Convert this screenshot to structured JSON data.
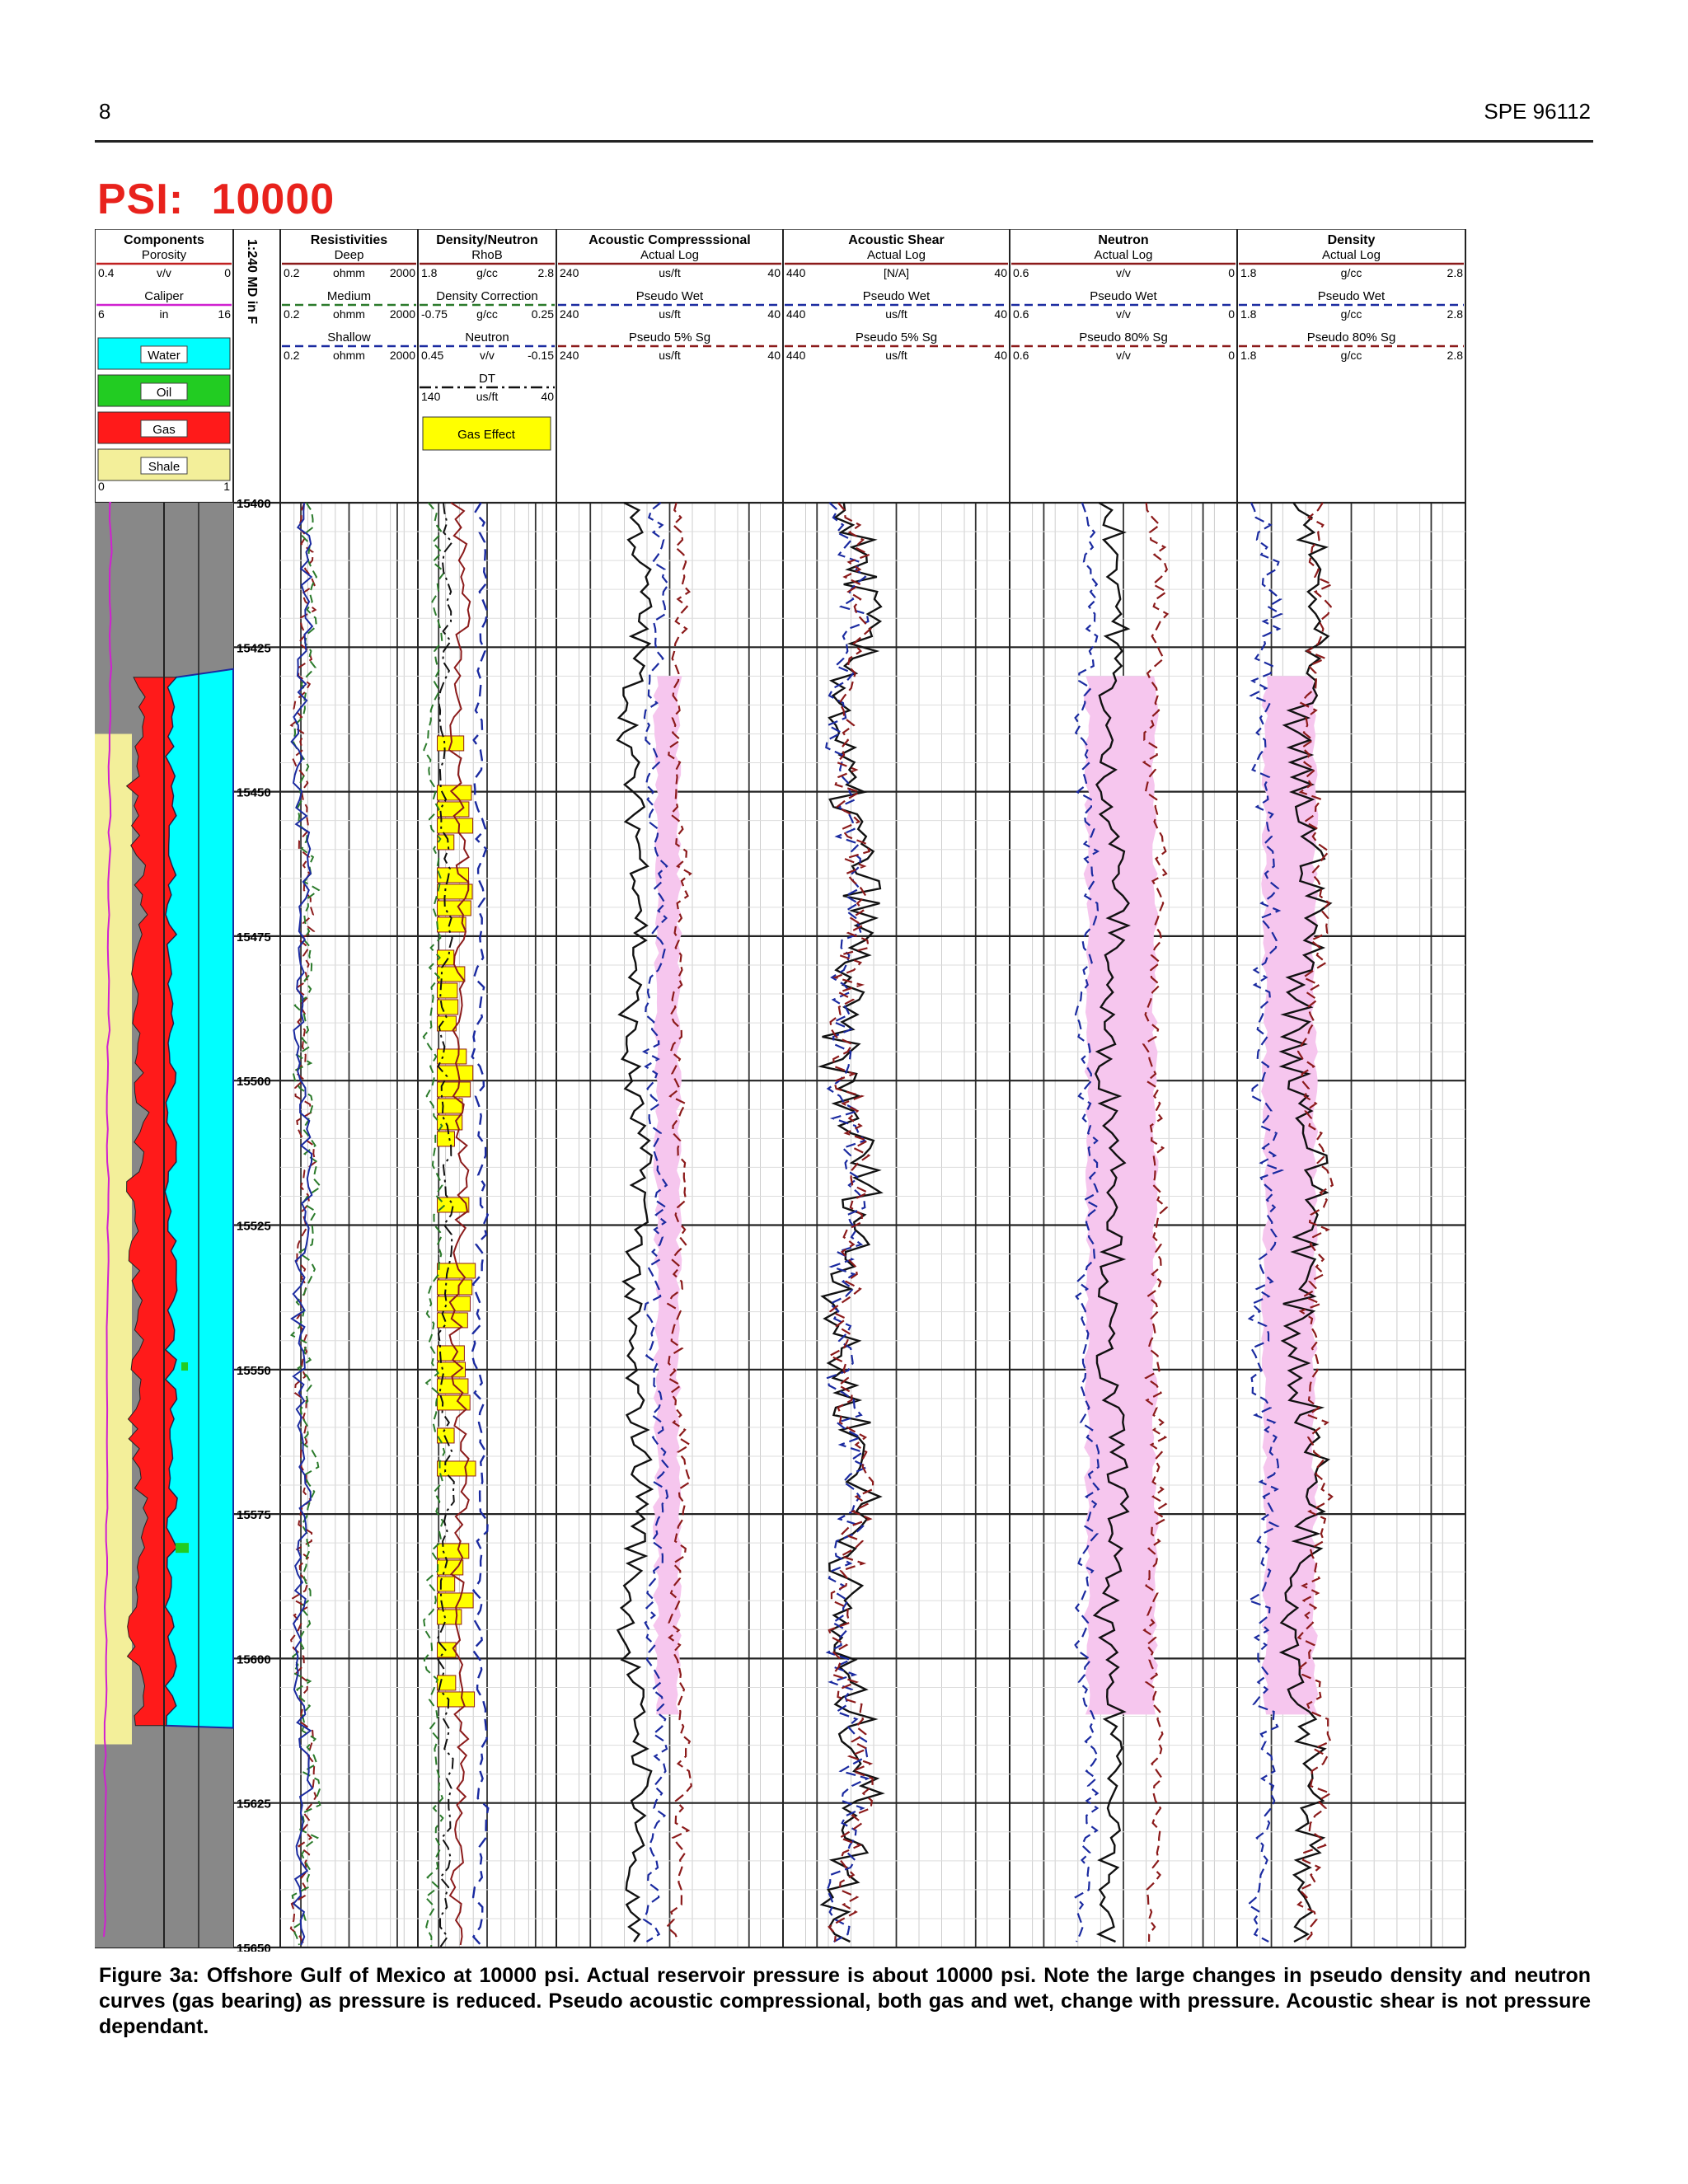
{
  "header": {
    "page_number": "8",
    "paper_id": "SPE 96112"
  },
  "figure": {
    "psi_label": "PSI:",
    "psi_value": "10000",
    "caption": "Figure 3a: Offshore Gulf of Mexico at 10000 psi.  Actual reservoir pressure is about 10000 psi.  Note the large changes in pseudo density and neutron curves (gas bearing) as pressure is reduced.  Pseudo acoustic compressional, both gas and wet, change with pressure.  Acoustic shear is not pressure dependant.",
    "depth_axis_label": "1:240 MD in F",
    "tracks": [
      {
        "title": "Components",
        "rows": [
          {
            "name": "Porosity",
            "left": "0.4",
            "unit": "v/v",
            "right": "0",
            "color": "#c02020"
          },
          {
            "name": "Caliper",
            "left": "6",
            "unit": "in",
            "right": "16",
            "color": "#d020d0"
          }
        ],
        "legend": [
          "Water",
          "Oil",
          "Gas",
          "Shale"
        ],
        "scale": [
          "0",
          "1"
        ]
      },
      {
        "title": "Resistivities",
        "rows": [
          {
            "name": "Deep",
            "left": "0.2",
            "unit": "ohmm",
            "right": "2000",
            "color": "#8b1a1a"
          },
          {
            "name": "Medium",
            "left": "0.2",
            "unit": "ohmm",
            "right": "2000",
            "color": "#2a7a2a"
          },
          {
            "name": "Shallow",
            "left": "0.2",
            "unit": "ohmm",
            "right": "2000",
            "color": "#1a2aa0"
          }
        ]
      },
      {
        "title": "Density/Neutron",
        "rows": [
          {
            "name": "RhoB",
            "left": "1.8",
            "unit": "g/cc",
            "right": "2.8",
            "color": "#8b1a1a"
          },
          {
            "name": "Density Correction",
            "left": "-0.75",
            "unit": "g/cc",
            "right": "0.25",
            "color": "#2a7a2a"
          },
          {
            "name": "Neutron",
            "left": "0.45",
            "unit": "v/v",
            "right": "-0.15",
            "color": "#1a2aa0"
          },
          {
            "name": "DT",
            "left": "140",
            "unit": "us/ft",
            "right": "40",
            "color": "#111111"
          }
        ],
        "fill_label": "Gas Effect"
      },
      {
        "title": "Acoustic Compresssional",
        "rows": [
          {
            "name": "Actual Log",
            "left": "240",
            "unit": "us/ft",
            "right": "40",
            "color": "#8b1a1a"
          },
          {
            "name": "Pseudo Wet",
            "left": "240",
            "unit": "us/ft",
            "right": "40",
            "color": "#1a2aa0"
          },
          {
            "name": "Pseudo 5% Sg",
            "left": "240",
            "unit": "us/ft",
            "right": "40",
            "color": "#8b1a1a"
          }
        ]
      },
      {
        "title": "Acoustic Shear",
        "rows": [
          {
            "name": "Actual Log",
            "left": "440",
            "unit": "[N/A]",
            "right": "40",
            "color": "#8b1a1a"
          },
          {
            "name": "Pseudo Wet",
            "left": "440",
            "unit": "us/ft",
            "right": "40",
            "color": "#1a2aa0"
          },
          {
            "name": "Pseudo 5% Sg",
            "left": "440",
            "unit": "us/ft",
            "right": "40",
            "color": "#8b1a1a"
          }
        ]
      },
      {
        "title": "Neutron",
        "rows": [
          {
            "name": "Actual Log",
            "left": "0.6",
            "unit": "v/v",
            "right": "0",
            "color": "#8b1a1a"
          },
          {
            "name": "Pseudo Wet",
            "left": "0.6",
            "unit": "v/v",
            "right": "0",
            "color": "#1a2aa0"
          },
          {
            "name": "Pseudo 80% Sg",
            "left": "0.6",
            "unit": "v/v",
            "right": "0",
            "color": "#8b1a1a"
          }
        ]
      },
      {
        "title": "Density",
        "rows": [
          {
            "name": "Actual Log",
            "left": "1.8",
            "unit": "g/cc",
            "right": "2.8",
            "color": "#8b1a1a"
          },
          {
            "name": "Pseudo Wet",
            "left": "1.8",
            "unit": "g/cc",
            "right": "2.8",
            "color": "#1a2aa0"
          },
          {
            "name": "Pseudo 80% Sg",
            "left": "1.8",
            "unit": "g/cc",
            "right": "2.8",
            "color": "#8b1a1a"
          }
        ]
      }
    ],
    "depth_ticks": [
      "15400",
      "15425",
      "15450",
      "15475",
      "15500",
      "15525",
      "15550",
      "15575",
      "15600",
      "15625",
      "15650"
    ],
    "colors": {
      "water": "#00ffff",
      "oil": "#22cc22",
      "gas": "#ff1a1a",
      "shale_light": "#f3ef9a",
      "shale_dark": "#888888",
      "gas_effect": "#ffff00",
      "pseudo_fill": "#f6c6ee"
    }
  }
}
